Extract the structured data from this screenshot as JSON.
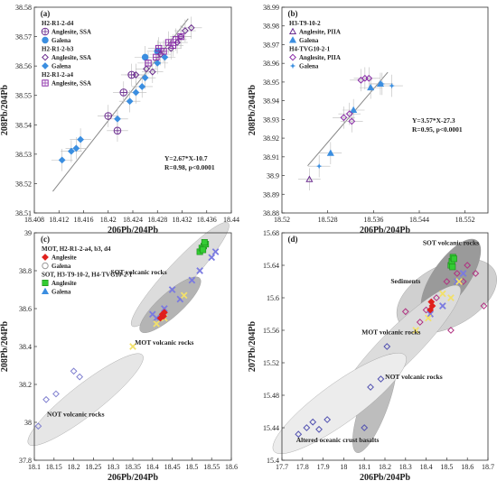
{
  "chart_data": [
    {
      "panel_label": "(a)",
      "type": "scatter",
      "xlabel": "206Pb/204Pb",
      "ylabel": "208Pb/204Pb",
      "xlim": [
        18.408,
        18.44
      ],
      "ylim": [
        38.51,
        38.58
      ],
      "xticks": [
        "18.408",
        "18.412",
        "18.416",
        "18.42",
        "18.424",
        "18.428",
        "18.432",
        "18.436",
        "18.44"
      ],
      "yticks": [
        "38.51",
        "38.52",
        "38.53",
        "38.54",
        "38.55",
        "38.56",
        "38.57",
        "38.58"
      ],
      "legend": [
        {
          "text": "H2-R1-2-d4",
          "kind": "header"
        },
        {
          "text": "Anglesite, SSA",
          "marker": "circle-plus",
          "color": "#6a2c8e"
        },
        {
          "text": "Galena",
          "marker": "circle",
          "color": "#3b8ee0"
        },
        {
          "text": "H2-R1-2-b3",
          "kind": "header"
        },
        {
          "text": "Anglesite, SSA",
          "marker": "diamond-open",
          "color": "#6a2c8e"
        },
        {
          "text": "Galena",
          "marker": "diamond",
          "color": "#3b8ee0"
        },
        {
          "text": "H2-R1-2-a4",
          "kind": "header"
        },
        {
          "text": "Anglesite, SSA",
          "marker": "square-plus",
          "color": "#8a2ca8"
        }
      ],
      "annotation": [
        "Y=2.67*X-10.7",
        "R=0.98, p<0.0001"
      ],
      "fit": {
        "slope": 2.67,
        "intercept": -10.7,
        "x_range": [
          18.411,
          18.433
        ]
      },
      "series": [
        {
          "name": "Galena",
          "marker": "diamond",
          "color": "#3b8ee0",
          "points": [
            [
              18.4125,
              38.528
            ],
            [
              18.414,
              38.531
            ],
            [
              18.4148,
              38.532
            ],
            [
              18.4155,
              38.535
            ],
            [
              18.4215,
              38.542
            ],
            [
              18.4235,
              38.548
            ],
            [
              18.4245,
              38.551
            ],
            [
              18.4255,
              38.553
            ],
            [
              18.426,
              38.556
            ],
            [
              18.428,
              38.561
            ],
            [
              18.4292,
              38.563
            ]
          ]
        },
        {
          "name": "Galena",
          "marker": "circle",
          "color": "#3b8ee0",
          "points": [
            [
              18.426,
              38.563
            ],
            [
              18.428,
              38.565
            ]
          ]
        },
        {
          "name": "Anglesite, SSA",
          "marker": "circle-plus",
          "color": "#6a2c8e",
          "points": [
            [
              18.42,
              38.543
            ],
            [
              18.4215,
              38.538
            ],
            [
              18.4225,
              38.551
            ],
            [
              18.4238,
              38.557
            ]
          ]
        },
        {
          "name": "Anglesite, SSA",
          "marker": "diamond-open",
          "color": "#6a2c8e",
          "points": [
            [
              18.4245,
              38.557
            ],
            [
              18.4262,
              38.559
            ],
            [
              18.4272,
              38.558
            ],
            [
              18.4285,
              38.564
            ],
            [
              18.4302,
              38.566
            ],
            [
              18.4312,
              38.568
            ],
            [
              18.4325,
              38.572
            ],
            [
              18.4335,
              38.573
            ],
            [
              18.4318,
              38.57
            ]
          ]
        },
        {
          "name": "Anglesite, SSA",
          "marker": "square-plus",
          "color": "#8a2ca8",
          "points": [
            [
              18.4265,
              38.561
            ],
            [
              18.4278,
              38.563
            ],
            [
              18.429,
              38.565
            ],
            [
              18.4305,
              38.567
            ],
            [
              18.431,
              38.569
            ],
            [
              18.4318,
              38.57
            ],
            [
              18.4298,
              38.568
            ],
            [
              18.4282,
              38.566
            ]
          ]
        }
      ]
    },
    {
      "panel_label": "(b)",
      "type": "scatter",
      "xlabel": "206Pb/204Pb",
      "ylabel": "208Pb/204Pb",
      "xlim": [
        18.52,
        18.556
      ],
      "ylim": [
        38.88,
        38.99
      ],
      "xticks": [
        "18.52",
        "18.528",
        "18.536",
        "18.544",
        "18.552"
      ],
      "yticks": [
        "38.88",
        "38.89",
        "38.9",
        "38.91",
        "38.92",
        "38.93",
        "38.94",
        "38.95",
        "38.96",
        "38.97",
        "38.98",
        "38.99"
      ],
      "legend": [
        {
          "text": "H3-T9-10-2",
          "kind": "header"
        },
        {
          "text": "Anglesite, PIIA",
          "marker": "triangle-open",
          "color": "#6a2c8e"
        },
        {
          "text": "Galena",
          "marker": "triangle",
          "color": "#3b8ee0"
        },
        {
          "text": "H4-TVG10-2-1",
          "kind": "header"
        },
        {
          "text": "Anglesite, PIIA",
          "marker": "diamond-open",
          "color": "#8a2ca8"
        },
        {
          "text": "Galena",
          "marker": "star",
          "color": "#3b8ee0"
        }
      ],
      "annotation": [
        "Y=3.57*X-27.3",
        "R=0.95, p<0.0001"
      ],
      "fit": {
        "slope": 3.57,
        "intercept": -27.3,
        "x_range": [
          18.5245,
          18.5385
        ]
      },
      "series": [
        {
          "name": "Anglesite, PIIA",
          "marker": "triangle-open",
          "color": "#6a2c8e",
          "points": [
            [
              18.5248,
              38.898
            ]
          ]
        },
        {
          "name": "Galena",
          "marker": "triangle",
          "color": "#3b8ee0",
          "points": [
            [
              18.5285,
              38.912
            ],
            [
              18.5325,
              38.935
            ],
            [
              18.5355,
              38.947
            ],
            [
              18.5372,
              38.949
            ]
          ]
        },
        {
          "name": "Anglesite, PIIA",
          "marker": "diamond-open",
          "color": "#8a2ca8",
          "points": [
            [
              18.5308,
              38.931
            ],
            [
              18.5318,
              38.933
            ],
            [
              18.5322,
              38.929
            ],
            [
              18.5338,
              38.951
            ],
            [
              18.5345,
              38.952
            ],
            [
              18.5352,
              38.952
            ]
          ]
        },
        {
          "name": "Galena",
          "marker": "star",
          "color": "#3b8ee0",
          "points": [
            [
              18.5265,
              38.905
            ],
            [
              18.5375,
              38.949
            ],
            [
              18.5392,
              38.948
            ]
          ]
        }
      ]
    },
    {
      "panel_label": "(c)",
      "type": "scatter",
      "xlabel": "206Pb/204Pb",
      "ylabel": "208Pb/204Pb",
      "xlim": [
        18.1,
        18.6
      ],
      "ylim": [
        37.8,
        39
      ],
      "xticks": [
        "18.1",
        "18.15",
        "18.2",
        "18.25",
        "18.3",
        "18.35",
        "18.4",
        "18.45",
        "18.5",
        "18.55",
        "18.6"
      ],
      "yticks": [
        "37.8",
        "38",
        "38.2",
        "38.4",
        "38.6",
        "38.8",
        "39"
      ],
      "legend": [
        {
          "text": "MOT, H2-R1-2-a4, b3, d4",
          "kind": "header"
        },
        {
          "text": "Anglesite",
          "marker": "diamond",
          "color": "#e0201c"
        },
        {
          "text": "Galena",
          "marker": "circle-open",
          "color": "#9a9a9a"
        },
        {
          "text": "SOT, H3-T9-10-2, H4-TVG10-2-1",
          "kind": "header"
        },
        {
          "text": "Anglesite",
          "marker": "square",
          "color": "#33cc33"
        },
        {
          "text": "Galena",
          "marker": "triangle",
          "color": "#3b8ee0"
        }
      ],
      "region_labels": [
        "SOT volcanic rocks",
        "MOT volcanic rocks",
        "NOT volcanic rocks"
      ],
      "series": [
        {
          "name": "NOT",
          "marker": "diamond-open",
          "color": "#8080d0",
          "points": [
            [
              18.11,
              37.98
            ],
            [
              18.13,
              38.12
            ],
            [
              18.155,
              38.15
            ],
            [
              18.2,
              38.27
            ],
            [
              18.215,
              38.24
            ]
          ]
        },
        {
          "name": "MOT/SOT",
          "marker": "x",
          "color": "#7a7ae0",
          "points": [
            [
              18.41,
              38.55
            ],
            [
              18.43,
              38.6
            ],
            [
              18.45,
              38.7
            ],
            [
              18.5,
              38.75
            ],
            [
              18.52,
              38.8
            ],
            [
              18.55,
              38.87
            ],
            [
              18.56,
              38.9
            ],
            [
              18.47,
              38.65
            ],
            [
              18.4,
              38.57
            ]
          ]
        },
        {
          "name": "yellow",
          "marker": "x",
          "color": "#f2e06a",
          "points": [
            [
              18.35,
              38.4
            ],
            [
              18.41,
              38.52
            ],
            [
              18.43,
              38.55
            ],
            [
              18.48,
              38.67
            ]
          ]
        },
        {
          "name": "Anglesite (MOT)",
          "marker": "diamond",
          "color": "#e0201c",
          "points": [
            [
              18.42,
              38.55
            ],
            [
              18.425,
              38.57
            ],
            [
              18.43,
              38.58
            ],
            [
              18.428,
              38.56
            ]
          ]
        },
        {
          "name": "Anglesite (SOT)",
          "marker": "square",
          "color": "#33cc33",
          "points": [
            [
              18.52,
              38.9
            ],
            [
              18.525,
              38.92
            ],
            [
              18.53,
              38.93
            ],
            [
              18.535,
              38.94
            ],
            [
              18.528,
              38.91
            ],
            [
              18.532,
              38.95
            ]
          ]
        }
      ]
    },
    {
      "panel_label": "(d)",
      "type": "scatter",
      "xlabel": "206Pb/204Pb",
      "ylabel": "207Pb/204Pb",
      "xlim": [
        17.7,
        18.7
      ],
      "ylim": [
        15.4,
        15.68
      ],
      "xticks": [
        "17.7",
        "17.8",
        "17.9",
        "18",
        "18.1",
        "18.2",
        "18.3",
        "18.4",
        "18.5",
        "18.6",
        "18.7"
      ],
      "yticks": [
        "15.4",
        "15.44",
        "15.48",
        "15.52",
        "15.56",
        "15.6",
        "15.64",
        "15.68"
      ],
      "region_labels": [
        "SOT volcanic rocks",
        "Sediments",
        "MOT volcanic rocks",
        "NOT volcanic rocks",
        "Altered oceanic crust basalts"
      ],
      "series": [
        {
          "name": "NOT",
          "marker": "diamond-open",
          "color": "#5050b0",
          "points": [
            [
              17.78,
              15.432
            ],
            [
              17.82,
              15.44
            ],
            [
              17.85,
              15.447
            ],
            [
              17.88,
              15.438
            ],
            [
              17.92,
              15.45
            ],
            [
              18.1,
              15.44
            ],
            [
              18.13,
              15.49
            ],
            [
              18.18,
              15.5
            ],
            [
              18.21,
              15.54
            ]
          ]
        },
        {
          "name": "Sediments",
          "marker": "diamond-open",
          "color": "#b03080",
          "points": [
            [
              18.3,
              15.583
            ],
            [
              18.37,
              15.57
            ],
            [
              18.45,
              15.6
            ],
            [
              18.5,
              15.62
            ],
            [
              18.55,
              15.63
            ],
            [
              18.6,
              15.64
            ],
            [
              18.64,
              15.63
            ],
            [
              18.68,
              15.59
            ],
            [
              18.4,
              15.585
            ],
            [
              18.52,
              15.56
            ],
            [
              18.58,
              15.62
            ]
          ]
        },
        {
          "name": "MOT/SOT",
          "marker": "x",
          "color": "#7a7ae0",
          "points": [
            [
              18.42,
              15.58
            ],
            [
              18.48,
              15.59
            ],
            [
              18.55,
              15.62
            ],
            [
              18.58,
              15.63
            ]
          ]
        },
        {
          "name": "yellow",
          "marker": "x",
          "color": "#f2e06a",
          "points": [
            [
              18.35,
              15.56
            ],
            [
              18.41,
              15.575
            ],
            [
              18.48,
              15.605
            ],
            [
              18.52,
              15.6
            ],
            [
              18.56,
              15.62
            ]
          ]
        },
        {
          "name": "Anglesite (MOT)",
          "marker": "diamond",
          "color": "#e0201c",
          "points": [
            [
              18.42,
              15.585
            ],
            [
              18.43,
              15.59
            ],
            [
              18.425,
              15.595
            ]
          ]
        },
        {
          "name": "Anglesite (SOT)",
          "marker": "square",
          "color": "#33cc33",
          "points": [
            [
              18.52,
              15.64
            ],
            [
              18.525,
              15.645
            ],
            [
              18.53,
              15.65
            ],
            [
              18.535,
              15.648
            ],
            [
              18.528,
              15.638
            ]
          ]
        }
      ]
    }
  ]
}
